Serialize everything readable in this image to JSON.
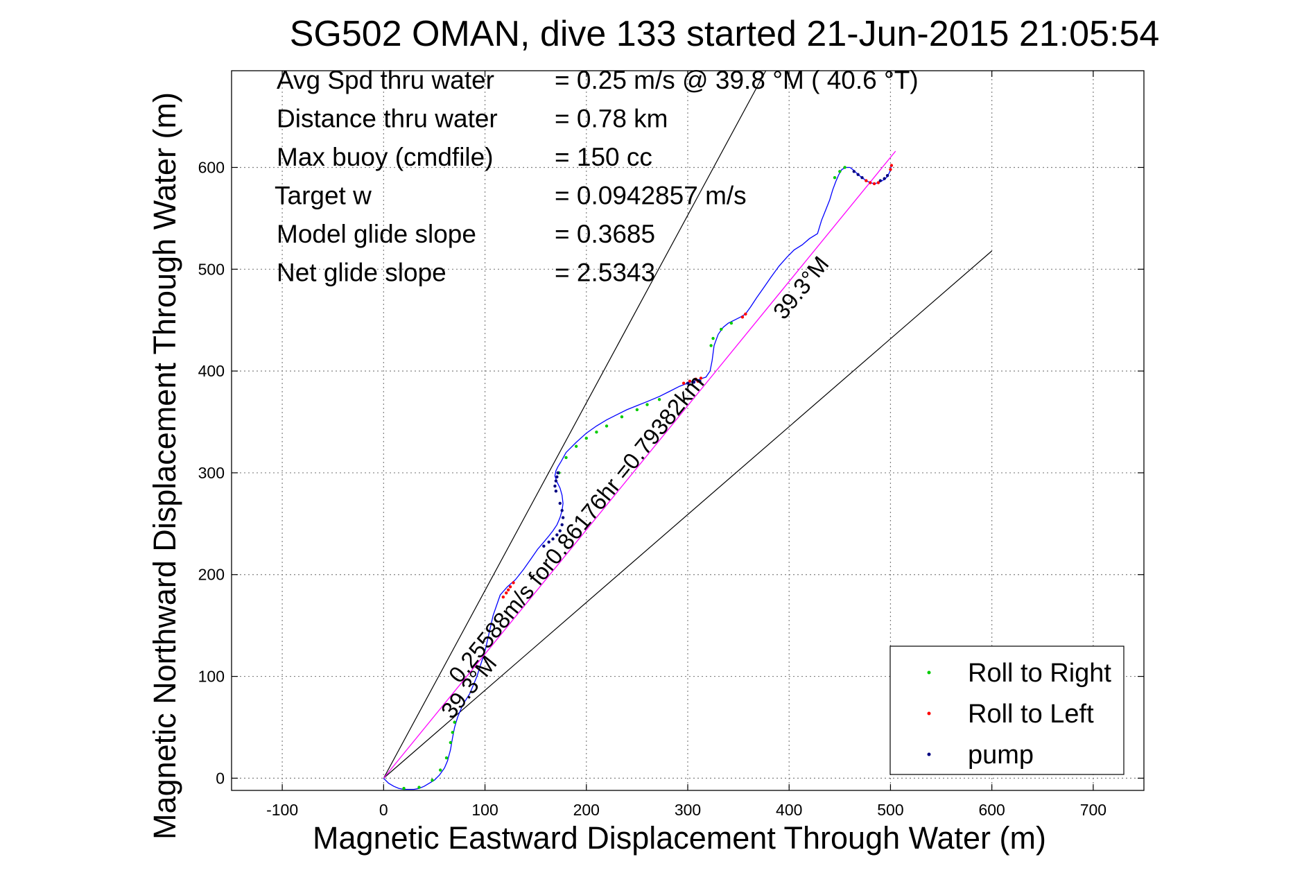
{
  "chart_data": {
    "type": "line",
    "title": "SG502 OMAN, dive 133 started 21-Jun-2015 21:05:54",
    "xlabel": "Magnetic Eastward Displacement Through Water (m)",
    "ylabel": "Magnetic Northward Displacement Through Water (m)",
    "xlim": [
      -150,
      750
    ],
    "ylim": [
      -12,
      695
    ],
    "xticks": [
      -100,
      0,
      100,
      200,
      300,
      400,
      500,
      600,
      700
    ],
    "yticks": [
      0,
      100,
      200,
      300,
      400,
      500,
      600
    ],
    "grid": true,
    "legend_placement": "bottom-right",
    "info_lines": [
      {
        "label": "Avg Spd thru water",
        "value": "=  0.25 m/s @  39.8 °M ( 40.6 °T)"
      },
      {
        "label": "Distance thru water",
        "value": "=  0.78 km"
      },
      {
        "label": "Max buoy (cmdfile)",
        "value": "= 150 cc"
      },
      {
        "label": "Target w",
        "value": "= 0.0942857 m/s"
      },
      {
        "label": "Model glide slope",
        "value": "= 0.3685"
      },
      {
        "label": "Net glide slope",
        "value": "= 2.5343"
      }
    ],
    "annotations": {
      "along_track": "0.25588m/s for0.86176hr =0.79382km",
      "heading_upper": "39.3°M",
      "heading_lower": "39.3°M"
    },
    "series": [
      {
        "name": "Roll to Right",
        "color": "#00cc00",
        "x": [
          20,
          35,
          48,
          56,
          62,
          66,
          68,
          70,
          173,
          180,
          190,
          200,
          210,
          220,
          235,
          250,
          260,
          272,
          323,
          325,
          333,
          343,
          445,
          450,
          455
        ],
        "y": [
          -10,
          -9,
          -2,
          8,
          20,
          35,
          45,
          55,
          300,
          315,
          326,
          334,
          340,
          346,
          355,
          362,
          367,
          372,
          425,
          432,
          441,
          447,
          590,
          596,
          600
        ]
      },
      {
        "name": "Roll to Left",
        "color": "#ff0000",
        "x": [
          118,
          121,
          123,
          125,
          128,
          296,
          302,
          308,
          310,
          313,
          354,
          357,
          476,
          480,
          484,
          488,
          500,
          501
        ],
        "y": [
          178,
          182,
          185,
          188,
          192,
          388,
          390,
          392,
          390,
          393,
          453,
          456,
          587,
          585,
          584,
          585,
          598,
          602
        ]
      },
      {
        "name": "pump",
        "color": "#000080",
        "x": [
          172,
          171,
          170,
          169,
          170,
          174,
          176,
          177,
          176,
          174,
          171,
          167,
          163,
          158,
          300,
          306,
          312,
          464,
          468,
          472,
          490,
          494,
          497
        ],
        "y": [
          300,
          296,
          292,
          287,
          282,
          270,
          263,
          256,
          249,
          243,
          239,
          235,
          232,
          228,
          388,
          389,
          390,
          596,
          593,
          590,
          587,
          589,
          592
        ]
      }
    ],
    "track": {
      "x": [
        0,
        5,
        10,
        15,
        20,
        25,
        30,
        35,
        40,
        45,
        50,
        55,
        60,
        63,
        66,
        68,
        70,
        73,
        78,
        85,
        92,
        100,
        108,
        115,
        122,
        130,
        138,
        145,
        152,
        158,
        163,
        167,
        171,
        174,
        176,
        177,
        176,
        174,
        171,
        169,
        170,
        172,
        175,
        180,
        190,
        200,
        210,
        220,
        230,
        240,
        250,
        260,
        272,
        282,
        292,
        300,
        306,
        312,
        318,
        322,
        324,
        326,
        330,
        335,
        340,
        346,
        352,
        357,
        362,
        368,
        375,
        382,
        390,
        398,
        405,
        413,
        420,
        428,
        432,
        436,
        440,
        443,
        446,
        449,
        452,
        456,
        460,
        464,
        468,
        472,
        476,
        480,
        484,
        488,
        492,
        496,
        499,
        501
      ],
      "y": [
        0,
        -5,
        -8,
        -10,
        -11,
        -11,
        -11,
        -10,
        -8,
        -5,
        -2,
        3,
        10,
        17,
        28,
        40,
        50,
        60,
        72,
        83,
        100,
        125,
        160,
        180,
        188,
        195,
        205,
        215,
        225,
        232,
        238,
        243,
        249,
        256,
        263,
        270,
        278,
        285,
        291,
        297,
        302,
        306,
        311,
        320,
        330,
        339,
        346,
        352,
        357,
        362,
        366,
        370,
        375,
        380,
        385,
        388,
        390,
        392,
        394,
        400,
        410,
        425,
        436,
        443,
        447,
        450,
        453,
        456,
        463,
        472,
        482,
        492,
        503,
        512,
        519,
        524,
        530,
        535,
        548,
        558,
        568,
        578,
        586,
        593,
        598,
        600,
        600,
        597,
        593,
        590,
        587,
        585,
        584,
        585,
        587,
        590,
        595,
        602
      ]
    },
    "mean_track": {
      "x": [
        0,
        505
      ],
      "y": [
        0,
        616
      ]
    },
    "reference_lines": [
      {
        "x": [
          0,
          377
        ],
        "y": [
          0,
          695
        ]
      },
      {
        "x": [
          0,
          600
        ],
        "y": [
          0,
          518
        ]
      }
    ]
  }
}
